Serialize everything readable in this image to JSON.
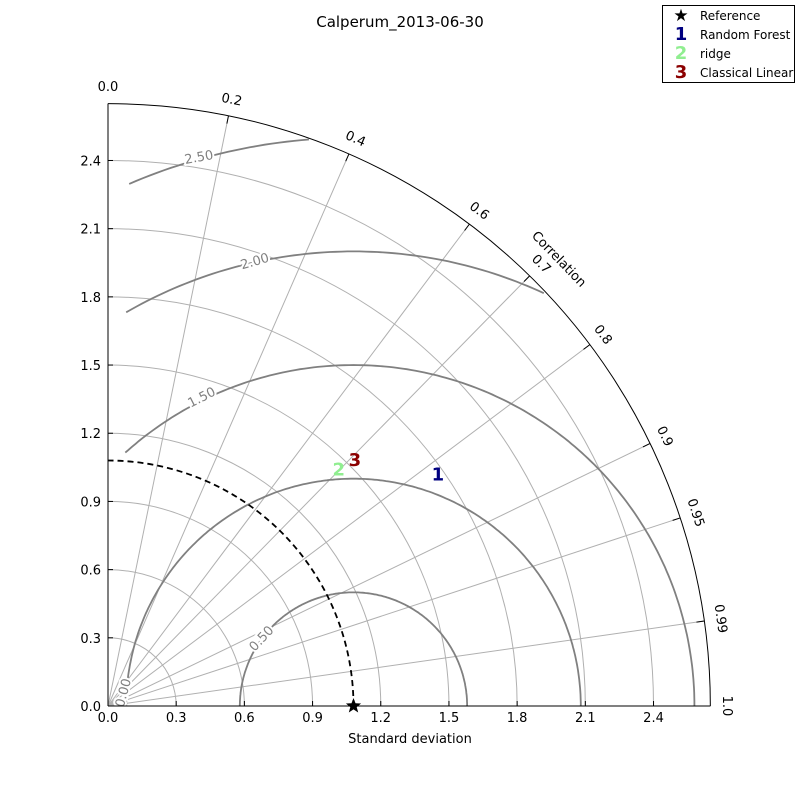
{
  "chart_data": {
    "type": "taylor-diagram",
    "title": "Calperum_2013-06-30",
    "xlabel": "Standard deviation",
    "angular_label": "Correlation",
    "std_range": [
      0,
      2.65
    ],
    "std_ticks": [
      0.0,
      0.3,
      0.6,
      0.9,
      1.2,
      1.5,
      1.8,
      2.1,
      2.4
    ],
    "std_tick_labels": [
      "0.0",
      "0.3",
      "0.6",
      "0.9",
      "1.2",
      "1.5",
      "1.8",
      "2.1",
      "2.4"
    ],
    "correlation_ticks": [
      0.0,
      0.2,
      0.4,
      0.6,
      0.7,
      0.8,
      0.9,
      0.95,
      0.99,
      1.0
    ],
    "correlation_tick_labels": [
      "0.0",
      "0.2",
      "0.4",
      "0.6",
      "0.7",
      "0.8",
      "0.9",
      "0.95",
      "0.99",
      "1.0"
    ],
    "rms_contours": [
      0.5,
      1.0,
      1.5,
      2.0,
      2.5
    ],
    "rms_contour_labels": [
      "0.00",
      "0.50",
      "1.00",
      "1.50",
      "2.00",
      "2.50"
    ],
    "reference": {
      "name": "Reference",
      "std": 1.08,
      "correlation": 1.0
    },
    "series": [
      {
        "id": "1",
        "name": "Random Forest",
        "std": 1.77,
        "correlation": 0.82,
        "color": "#000080"
      },
      {
        "id": "2",
        "name": "ridge",
        "std": 1.45,
        "correlation": 0.7,
        "color": "#90ee90"
      },
      {
        "id": "3",
        "name": "Classical Linear",
        "std": 1.53,
        "correlation": 0.71,
        "color": "#8b0000"
      }
    ],
    "grid": true,
    "legend_position": "top-right"
  }
}
